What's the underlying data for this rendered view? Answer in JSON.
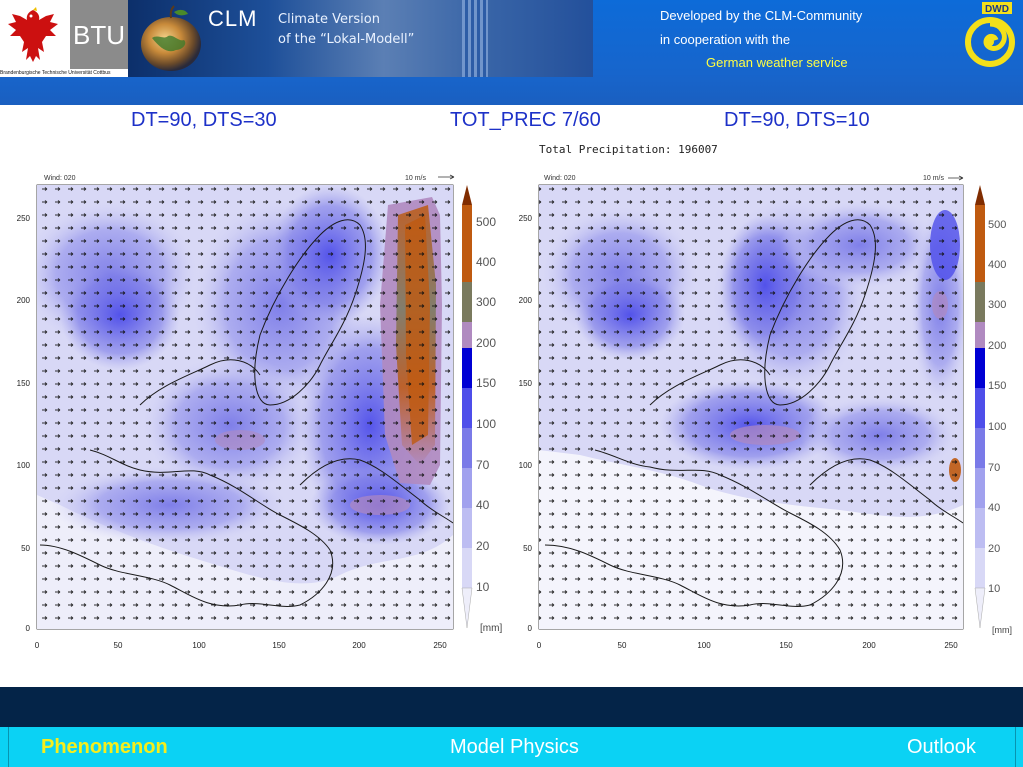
{
  "header": {
    "btu_short": "BTU",
    "btu_full": "Brandenburgische Technische Universität Cottbus",
    "clm_word": "CLM",
    "clm_title_line1": "Climate Version",
    "clm_title_line2": "of the “Lokal-Modell”",
    "developed_line1": "Developed by the CLM-Community",
    "developed_line2": "in cooperation with the",
    "developed_line3": "German weather service",
    "dwd_label": "DWD"
  },
  "labels": {
    "left": "DT=90, DTS=30",
    "middle": "TOT_PREC 7/60",
    "right": "DT=90, DTS=10",
    "suptitle": "Total Precipitation: 196007"
  },
  "panels": [
    {
      "wind_label": "Wind:  020",
      "wind_ref": "10 m/s",
      "unit": "[mm]"
    },
    {
      "wind_label": "Wind:  020",
      "wind_ref": "10 m/s",
      "unit": "[mm]"
    }
  ],
  "axis": {
    "xticks": [
      "0",
      "50",
      "100",
      "150",
      "200",
      "250"
    ],
    "yticks": [
      "0",
      "50",
      "100",
      "150",
      "200",
      "250"
    ]
  },
  "colorbar": {
    "levels": [
      "10",
      "20",
      "40",
      "70",
      "100",
      "150",
      "200",
      "300",
      "400",
      "500"
    ],
    "colors": [
      "#eeeefa",
      "#d8d8f6",
      "#bdbdf2",
      "#a1a1ee",
      "#7a7ae8",
      "#4e4eea",
      "#0000d4",
      "#b08ac0",
      "#7a7a5e",
      "#bf5a10",
      "#802c00"
    ]
  },
  "colors": {
    "header_blue": "#1765cc",
    "label_blue": "#1d31c8",
    "footer_cyan": "#0bd2f4",
    "footer_dark": "#042448",
    "highlight_yellow": "#f5ee1c"
  },
  "footer": {
    "phenomenon": "Phenomenon",
    "model_physics": "Model Physics",
    "outlook": "Outlook"
  }
}
